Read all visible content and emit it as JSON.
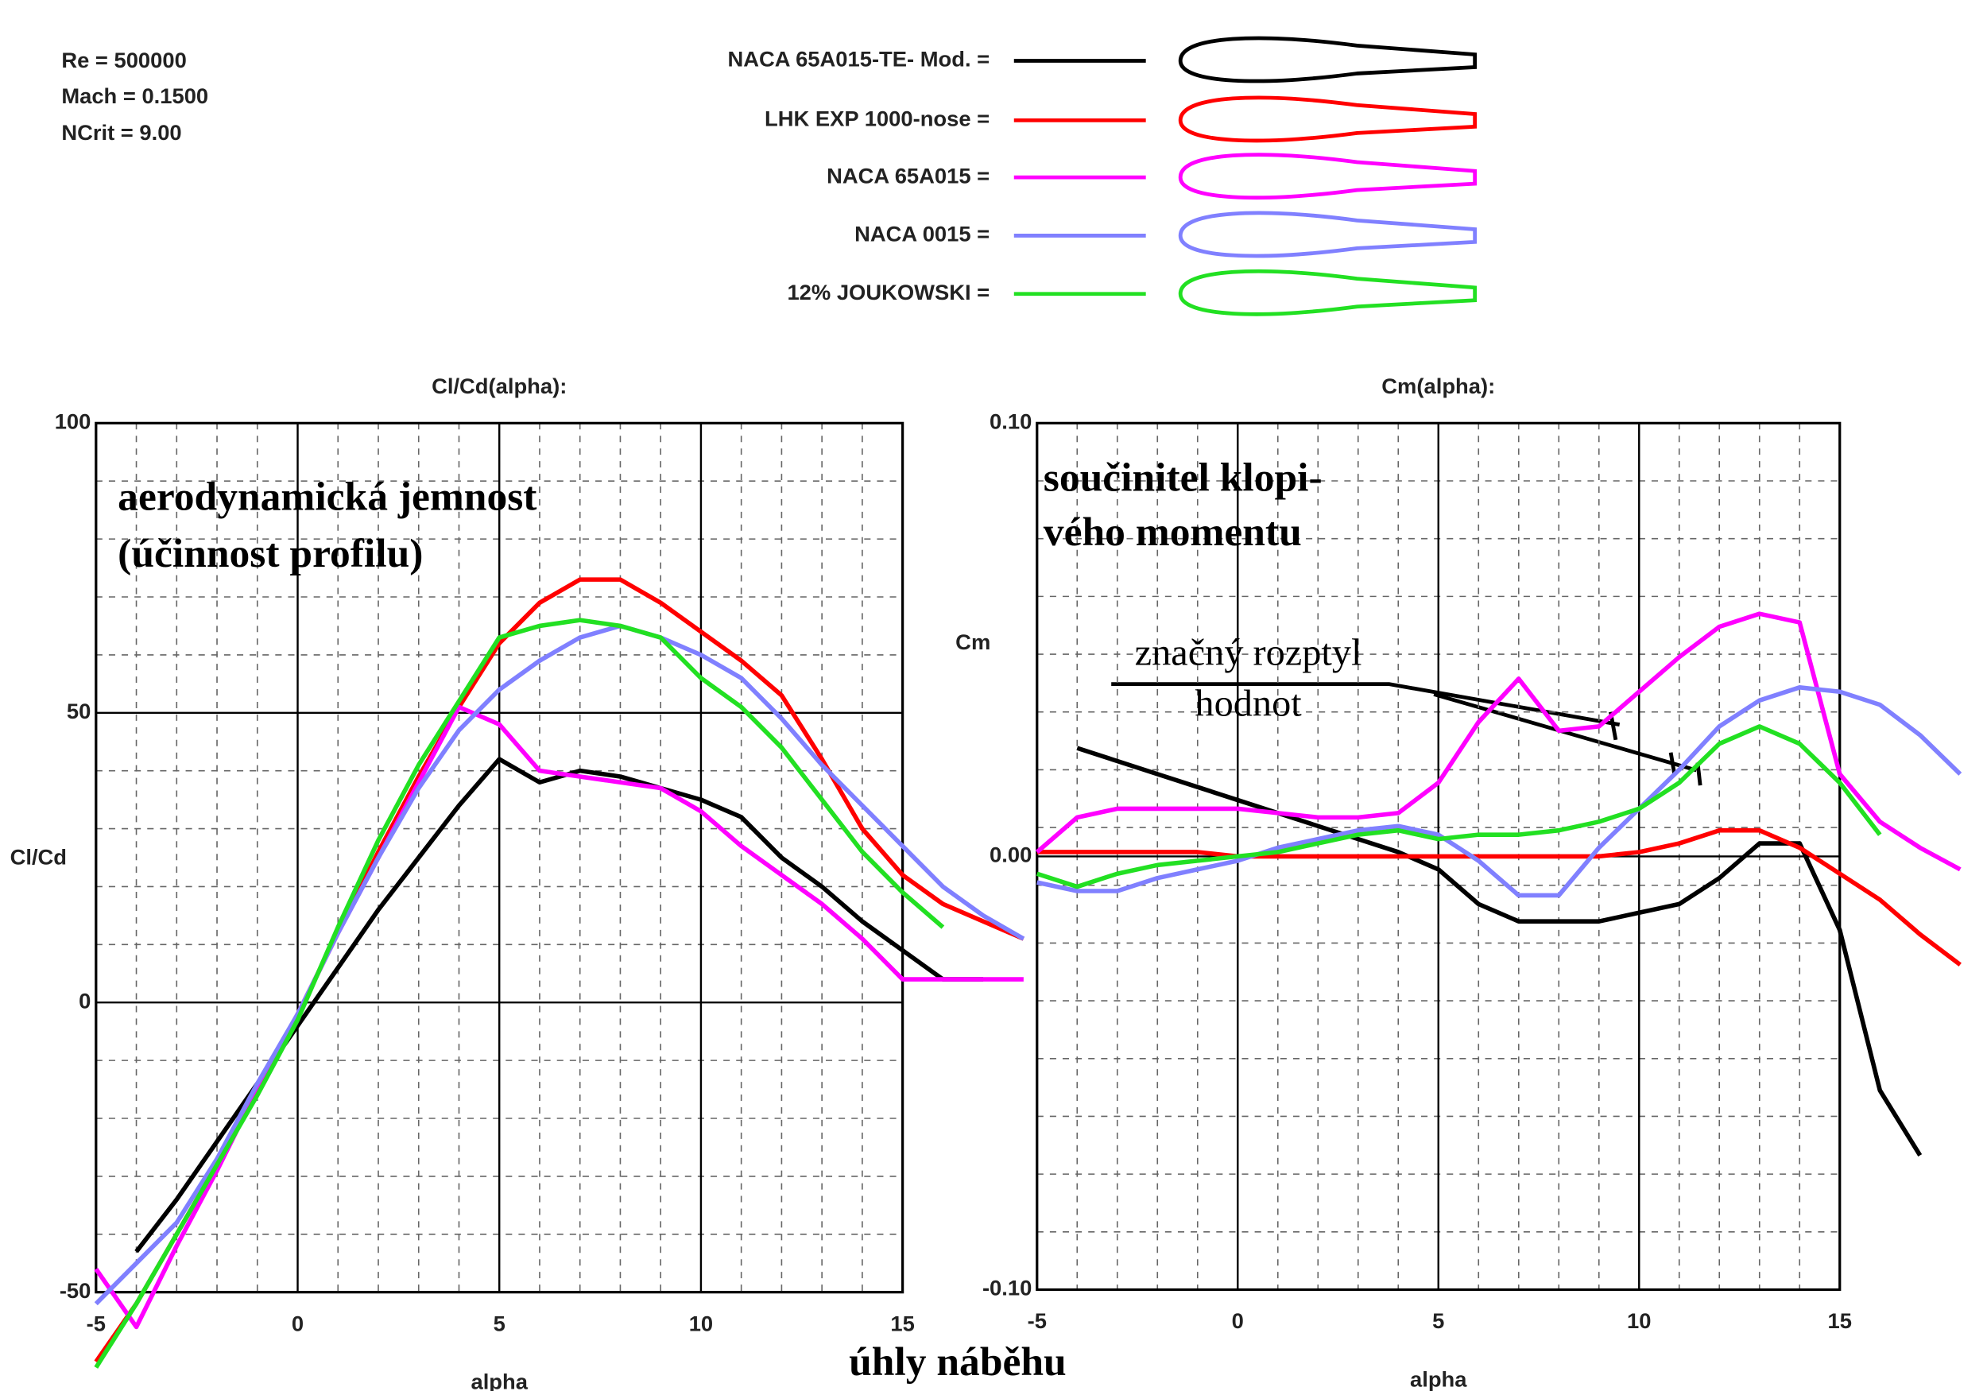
{
  "info": [
    "Re = 500000",
    "Mach = 0.1500",
    "NCrit = 9.00"
  ],
  "caption": "úhly náběhu",
  "chart_data": [
    {
      "type": "line",
      "title": "Cl/Cd(alpha):",
      "xlabel": "alpha",
      "ylabel": "Cl/Cd",
      "annotations": [
        "aerodynamická jemnost",
        "(účinnost profilu)"
      ],
      "xlim": [
        -5,
        15
      ],
      "xticks": [
        -5,
        0,
        5,
        10,
        15
      ],
      "ylim": [
        -50,
        100
      ],
      "yticks": [
        -50,
        0,
        50,
        100
      ],
      "grid": true,
      "series": [
        {
          "name": "NACA 65A015-TE- Mod. =",
          "color": "#000000",
          "x": [
            -4,
            -3,
            -2,
            -1,
            0,
            1,
            2,
            3,
            4,
            5,
            6,
            7,
            8,
            9,
            10,
            11,
            12,
            13,
            14,
            15,
            16,
            17
          ],
          "values": [
            -43,
            -34,
            -24,
            -14,
            -4,
            6,
            16,
            25,
            34,
            42,
            38,
            40,
            39,
            37,
            35,
            32,
            25,
            20,
            14,
            9,
            4,
            4
          ]
        },
        {
          "name": "LHK  EXP 1000-nose =",
          "color": "#ff0000",
          "x": [
            -5,
            -4,
            -3,
            -2,
            -1,
            0,
            1,
            2,
            3,
            4,
            5,
            6,
            7,
            8,
            9,
            10,
            11,
            12,
            13,
            14,
            15,
            16,
            17,
            18
          ],
          "values": [
            -62,
            -52,
            -40,
            -28,
            -15,
            -2,
            12,
            26,
            39,
            51,
            62,
            69,
            73,
            73,
            69,
            64,
            59,
            53,
            42,
            30,
            22,
            17,
            14,
            11
          ]
        },
        {
          "name": "NACA 65A015 =",
          "color": "#ff00ff",
          "x": [
            -5,
            -4,
            -3,
            -2,
            -1,
            0,
            1,
            2,
            3,
            4,
            5,
            6,
            7,
            8,
            9,
            10,
            11,
            12,
            13,
            14,
            15,
            16,
            17,
            18
          ],
          "values": [
            -46,
            -56,
            -42,
            -29,
            -15,
            -2,
            12,
            25,
            38,
            51,
            48,
            40,
            39,
            38,
            37,
            33,
            27,
            22,
            17,
            11,
            4,
            4,
            4,
            4
          ]
        },
        {
          "name": "NACA 0015 =",
          "color": "#8080ff",
          "x": [
            -5,
            -4,
            -3,
            -2,
            -1,
            0,
            1,
            2,
            3,
            4,
            5,
            6,
            7,
            8,
            9,
            10,
            11,
            12,
            13,
            14,
            15,
            16,
            17,
            18
          ],
          "values": [
            -52,
            -45,
            -38,
            -27,
            -14,
            -2,
            12,
            25,
            37,
            47,
            54,
            59,
            63,
            65,
            63,
            60,
            56,
            49,
            41,
            34,
            27,
            20,
            15,
            11
          ]
        },
        {
          "name": "12% JOUKOWSKI =",
          "color": "#22e022",
          "x": [
            -5,
            -4,
            -3,
            -2,
            -1,
            0,
            1,
            2,
            3,
            4,
            5,
            6,
            7,
            8,
            9,
            10,
            11,
            12,
            13,
            14,
            15,
            16
          ],
          "values": [
            -63,
            -52,
            -40,
            -28,
            -16,
            -3,
            13,
            28,
            41,
            52,
            63,
            65,
            66,
            65,
            63,
            56,
            51,
            44,
            35,
            26,
            19,
            13
          ]
        }
      ]
    },
    {
      "type": "line",
      "title": "Cm(alpha):",
      "xlabel": "alpha",
      "ylabel": "Cm",
      "annotations": [
        "součinitel klopi-",
        "vého momentu",
        "značný rozptyl",
        "hodnot"
      ],
      "xlim": [
        -5,
        15
      ],
      "xticks": [
        -5,
        0,
        5,
        10,
        15
      ],
      "ylim": [
        -0.1,
        0.1
      ],
      "yticks": [
        {
          "value": -0.1,
          "label": "-0.10"
        },
        {
          "value": 0,
          "label": "0.00"
        },
        {
          "value": 0.1,
          "label": "0.10"
        }
      ],
      "grid": true,
      "series": [
        {
          "color": "#000000",
          "x": [
            -4,
            -3,
            -2,
            -1,
            0,
            1,
            2,
            3,
            4,
            5,
            6,
            7,
            8,
            9,
            10,
            11,
            12,
            13,
            14,
            15,
            16,
            17
          ],
          "values": [
            0.025,
            0.022,
            0.019,
            0.016,
            0.013,
            0.01,
            0.007,
            0.004,
            0.001,
            -0.003,
            -0.011,
            -0.015,
            -0.015,
            -0.015,
            -0.013,
            -0.011,
            -0.005,
            0.003,
            0.003,
            -0.017,
            -0.054,
            -0.069
          ]
        },
        {
          "color": "#ff0000",
          "x": [
            -5,
            -4,
            -3,
            -2,
            -1,
            0,
            1,
            2,
            3,
            4,
            5,
            6,
            7,
            8,
            9,
            10,
            11,
            12,
            13,
            14,
            15,
            16,
            17,
            18
          ],
          "values": [
            0.001,
            0.001,
            0.001,
            0.001,
            0.001,
            0,
            0,
            0,
            0,
            0,
            0,
            0,
            0,
            0,
            0,
            0.001,
            0.003,
            0.006,
            0.006,
            0.002,
            -0.004,
            -0.01,
            -0.018,
            -0.025
          ]
        },
        {
          "color": "#ff00ff",
          "x": [
            -5,
            -4,
            -3,
            -2,
            -1,
            0,
            1,
            2,
            3,
            4,
            5,
            6,
            7,
            8,
            9,
            10,
            11,
            12,
            13,
            14,
            15,
            16,
            17,
            18
          ],
          "values": [
            0.001,
            0.009,
            0.011,
            0.011,
            0.011,
            0.011,
            0.01,
            0.009,
            0.009,
            0.01,
            0.017,
            0.031,
            0.041,
            0.029,
            0.03,
            0.038,
            0.046,
            0.053,
            0.056,
            0.054,
            0.019,
            0.008,
            0.002,
            -0.003
          ]
        },
        {
          "color": "#8080ff",
          "x": [
            -5,
            -4,
            -3,
            -2,
            -1,
            0,
            1,
            2,
            3,
            4,
            5,
            6,
            7,
            8,
            9,
            10,
            11,
            12,
            13,
            14,
            15,
            16,
            17,
            18
          ],
          "values": [
            -0.006,
            -0.008,
            -0.008,
            -0.005,
            -0.003,
            -0.001,
            0.002,
            0.004,
            0.006,
            0.007,
            0.005,
            -0.001,
            -0.009,
            -0.009,
            0.002,
            0.011,
            0.02,
            0.03,
            0.036,
            0.039,
            0.038,
            0.035,
            0.028,
            0.019
          ]
        },
        {
          "color": "#22e022",
          "x": [
            -5,
            -4,
            -3,
            -2,
            -1,
            0,
            1,
            2,
            3,
            4,
            5,
            6,
            7,
            8,
            9,
            10,
            11,
            12,
            13,
            14,
            15,
            16
          ],
          "values": [
            -0.004,
            -0.007,
            -0.004,
            -0.002,
            -0.001,
            0,
            0.001,
            0.003,
            0.005,
            0.006,
            0.004,
            0.005,
            0.005,
            0.006,
            0.008,
            0.011,
            0.017,
            0.026,
            0.03,
            0.026,
            0.017,
            0.005
          ]
        }
      ]
    }
  ]
}
